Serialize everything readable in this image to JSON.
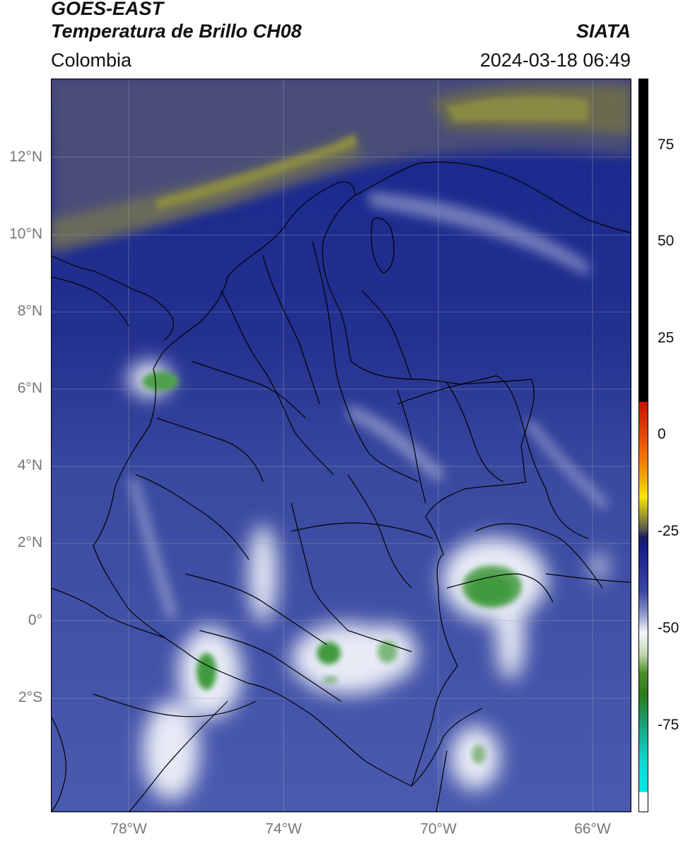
{
  "header": {
    "satellite": "GOES-EAST",
    "product": "Temperatura de Brillo CH08",
    "region": "Colombia",
    "source": "SIATA",
    "datetime": "2024-03-18 06:49"
  },
  "axes": {
    "lat_ticks": [
      "12°N",
      "10°N",
      "8°N",
      "6°N",
      "4°N",
      "2°N",
      "0°",
      "2°S"
    ],
    "lon_ticks": [
      "78°W",
      "74°W",
      "70°W",
      "66°W"
    ]
  },
  "colorbar": {
    "ticks": [
      "75",
      "50",
      "25",
      "0",
      "-25",
      "-50",
      "-75"
    ],
    "range": [
      -95,
      90
    ]
  },
  "colors": {
    "cloud_green": "#3f9a3c",
    "cloud_white": "#f2f4f8",
    "clear_blue": "#1e2a92",
    "dry_olive": "#8a8a40",
    "border": "#000000"
  }
}
